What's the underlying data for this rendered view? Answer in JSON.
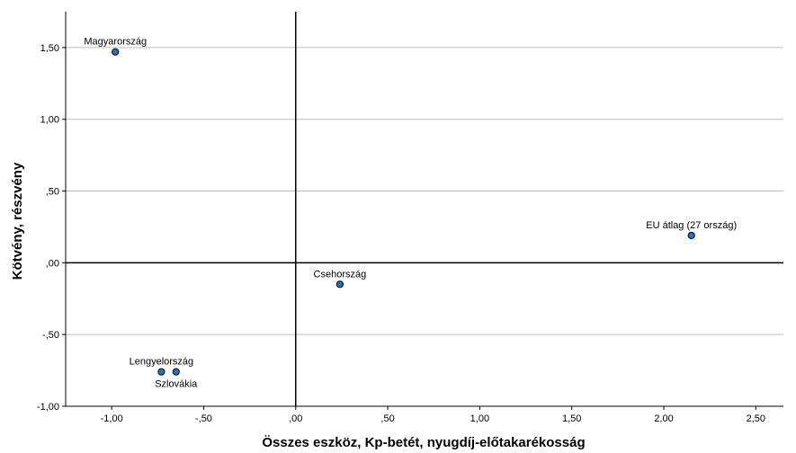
{
  "chart_data": {
    "type": "scatter",
    "xlabel": "Összes eszköz, Kp-betét, nyugdíj-előtakarékosság",
    "ylabel": "Kötvény, részvény",
    "xlim": [
      -1.25,
      2.65
    ],
    "ylim": [
      -1.0,
      1.75
    ],
    "x_ticks": [
      -1.0,
      -0.5,
      0.0,
      0.5,
      1.0,
      1.5,
      2.0,
      2.5
    ],
    "x_tick_labels": [
      "-1,00",
      "-,50",
      ",00",
      ",50",
      "1,00",
      "1,50",
      "2,00",
      "2,50"
    ],
    "y_ticks": [
      -1.0,
      -0.5,
      0.0,
      0.5,
      1.0,
      1.5
    ],
    "y_tick_labels": [
      "-1,00",
      "-,50",
      ",00",
      ",50",
      "1,00",
      "1,50"
    ],
    "grid": "horizontal",
    "reference_lines": {
      "x": 0,
      "y": 0
    },
    "points": [
      {
        "label": "Magyarország",
        "x": -0.98,
        "y": 1.47,
        "label_pos": "above"
      },
      {
        "label": "EU átlag (27 ország)",
        "x": 2.15,
        "y": 0.19,
        "label_pos": "above"
      },
      {
        "label": "Csehország",
        "x": 0.24,
        "y": -0.15,
        "label_pos": "above"
      },
      {
        "label": "Lengyelország",
        "x": -0.73,
        "y": -0.76,
        "label_pos": "above"
      },
      {
        "label": "Szlovákia",
        "x": -0.65,
        "y": -0.76,
        "label_pos": "below"
      }
    ],
    "marker_color": "#1f77c4",
    "marker_edge": "#000000"
  }
}
